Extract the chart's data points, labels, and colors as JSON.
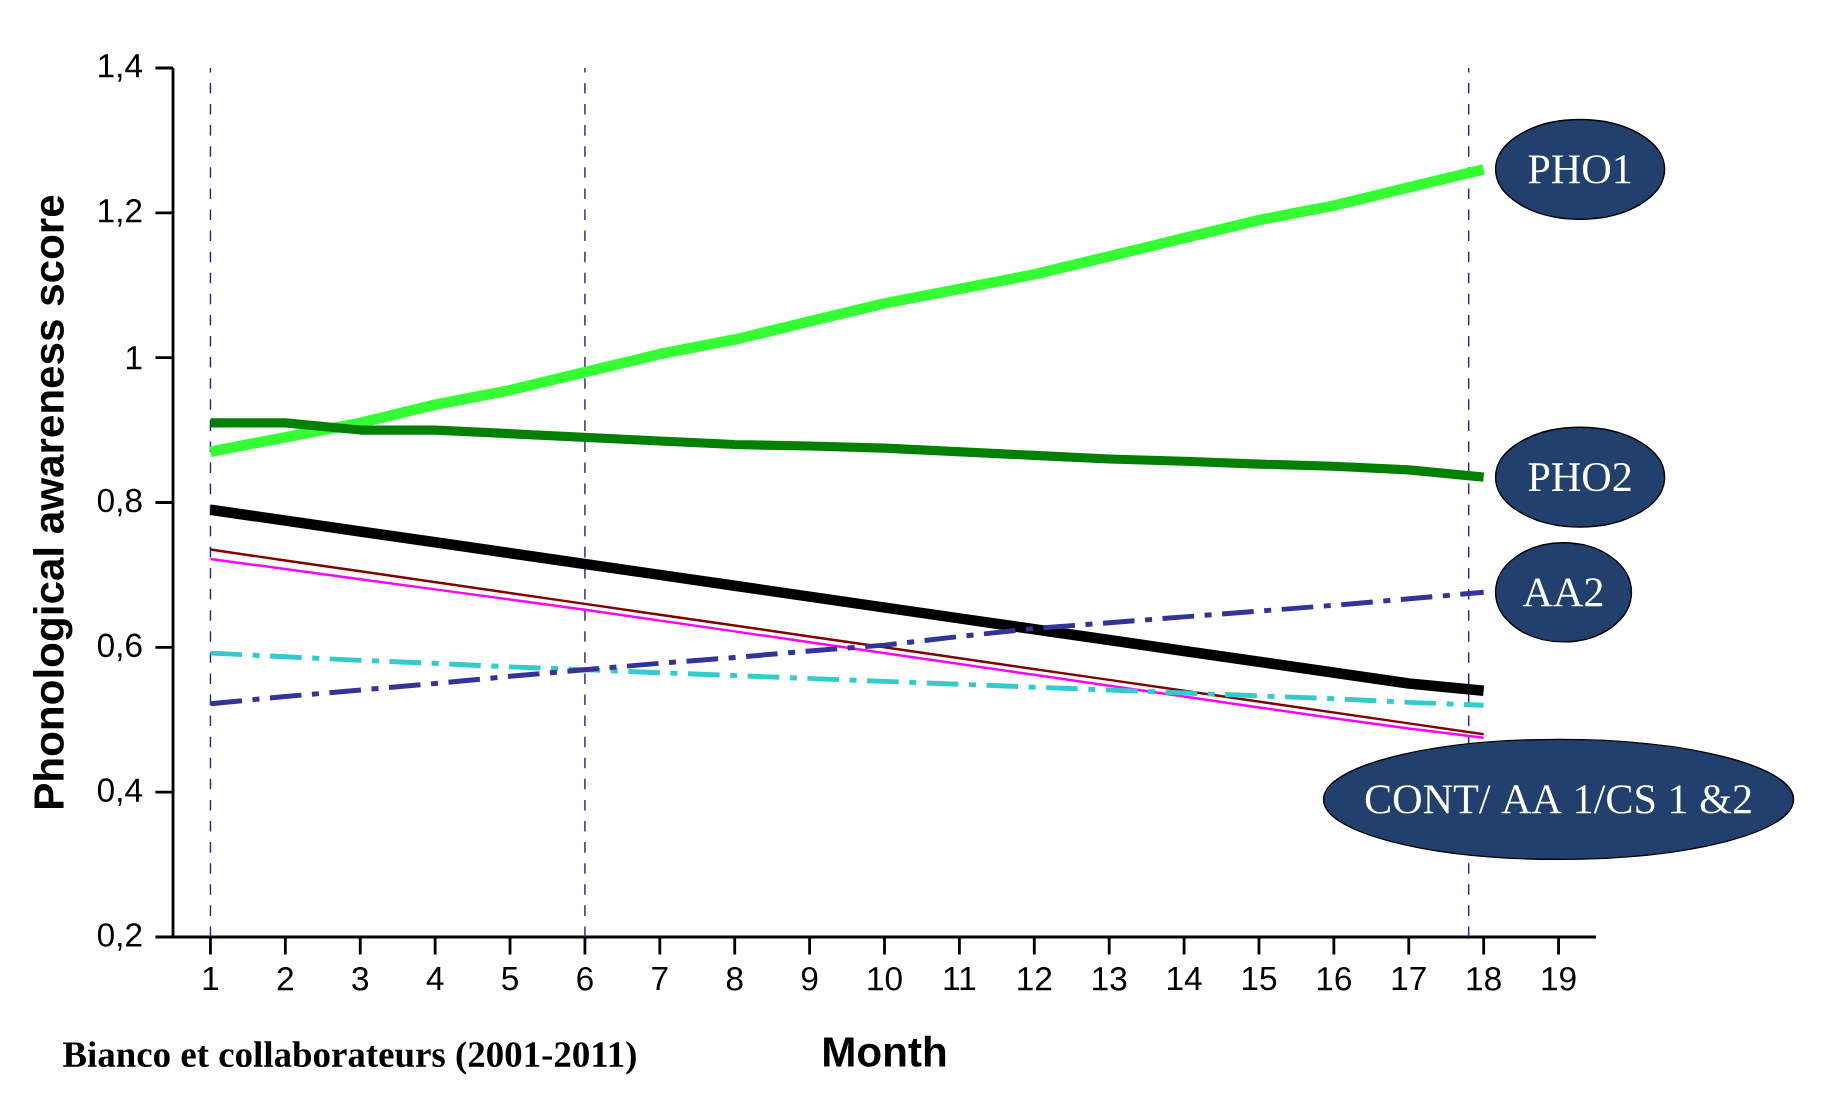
{
  "chart_data": {
    "type": "line",
    "xlabel": "Month",
    "ylabel": "Phonological awareness score",
    "x": [
      1,
      2,
      3,
      4,
      5,
      6,
      7,
      8,
      9,
      10,
      11,
      12,
      13,
      14,
      15,
      16,
      17,
      18
    ],
    "xlim": [
      0.5,
      19.5
    ],
    "xticks": [
      1,
      2,
      3,
      4,
      5,
      6,
      7,
      8,
      9,
      10,
      11,
      12,
      13,
      14,
      15,
      16,
      17,
      18,
      19
    ],
    "ylim": [
      0.2,
      1.4
    ],
    "yticks": [
      {
        "value": 0.2,
        "label": "0,2"
      },
      {
        "value": 0.4,
        "label": "0,4"
      },
      {
        "value": 0.6,
        "label": "0,6"
      },
      {
        "value": 0.8,
        "label": "0,8"
      },
      {
        "value": 1,
        "label": "1"
      },
      {
        "value": 1.2,
        "label": "1,2"
      },
      {
        "value": 1.4,
        "label": "1,4"
      }
    ],
    "grid": false,
    "marker": "none",
    "series": [
      {
        "name": "PHO1",
        "color": "#33ff33",
        "line_style": "solid",
        "values": [
          0.87,
          0.89,
          0.91,
          0.935,
          0.955,
          0.98,
          1.005,
          1.025,
          1.05,
          1.075,
          1.095,
          1.115,
          1.14,
          1.165,
          1.19,
          1.21,
          1.235,
          1.26
        ]
      },
      {
        "name": "PHO2",
        "color": "#008000",
        "line_style": "solid",
        "values": [
          0.91,
          0.91,
          0.9,
          0.9,
          0.895,
          0.89,
          0.885,
          0.88,
          0.878,
          0.875,
          0.87,
          0.865,
          0.86,
          0.857,
          0.853,
          0.85,
          0.845,
          0.835
        ]
      },
      {
        "color": "#000000",
        "line_style": "solid",
        "values": [
          0.79,
          0.775,
          0.76,
          0.745,
          0.73,
          0.715,
          0.7,
          0.685,
          0.67,
          0.655,
          0.64,
          0.625,
          0.61,
          0.595,
          0.58,
          0.565,
          0.55,
          0.54
        ]
      },
      {
        "color": "#800000",
        "line_style": "solid",
        "values": [
          0.735,
          0.72,
          0.705,
          0.69,
          0.675,
          0.66,
          0.645,
          0.63,
          0.615,
          0.6,
          0.585,
          0.57,
          0.555,
          0.54,
          0.525,
          0.51,
          0.495,
          0.48
        ]
      },
      {
        "color": "#ff00ff",
        "line_style": "solid",
        "values": [
          0.722,
          0.708,
          0.694,
          0.68,
          0.666,
          0.652,
          0.637,
          0.622,
          0.607,
          0.592,
          0.577,
          0.562,
          0.547,
          0.532,
          0.517,
          0.502,
          0.488,
          0.475
        ]
      },
      {
        "color": "#33cccc",
        "line_style": "dashdot",
        "values": [
          0.592,
          0.587,
          0.582,
          0.578,
          0.573,
          0.569,
          0.565,
          0.561,
          0.557,
          0.553,
          0.549,
          0.545,
          0.541,
          0.537,
          0.533,
          0.529,
          0.524,
          0.52
        ]
      },
      {
        "name": "AA2",
        "color": "#333399",
        "line_style": "dashdot",
        "values": [
          0.522,
          0.532,
          0.541,
          0.55,
          0.56,
          0.569,
          0.578,
          0.586,
          0.595,
          0.603,
          0.615,
          0.626,
          0.634,
          0.642,
          0.65,
          0.658,
          0.667,
          0.676
        ]
      }
    ],
    "ref_lines": [
      {
        "axis": "x",
        "value": 1,
        "color": "#1f1fa0",
        "line_style": "dashed"
      },
      {
        "axis": "x",
        "value": 6,
        "color": "#1f1fa0",
        "line_style": "dashed"
      },
      {
        "axis": "x",
        "value": 17.8,
        "color": "#1f1fa0",
        "line_style": "dashed"
      }
    ],
    "annotations": [
      "CONT/ AA 1/CS 1 &2",
      "**Bianco et collaborateurs (2001-2011)**"
    ]
  }
}
